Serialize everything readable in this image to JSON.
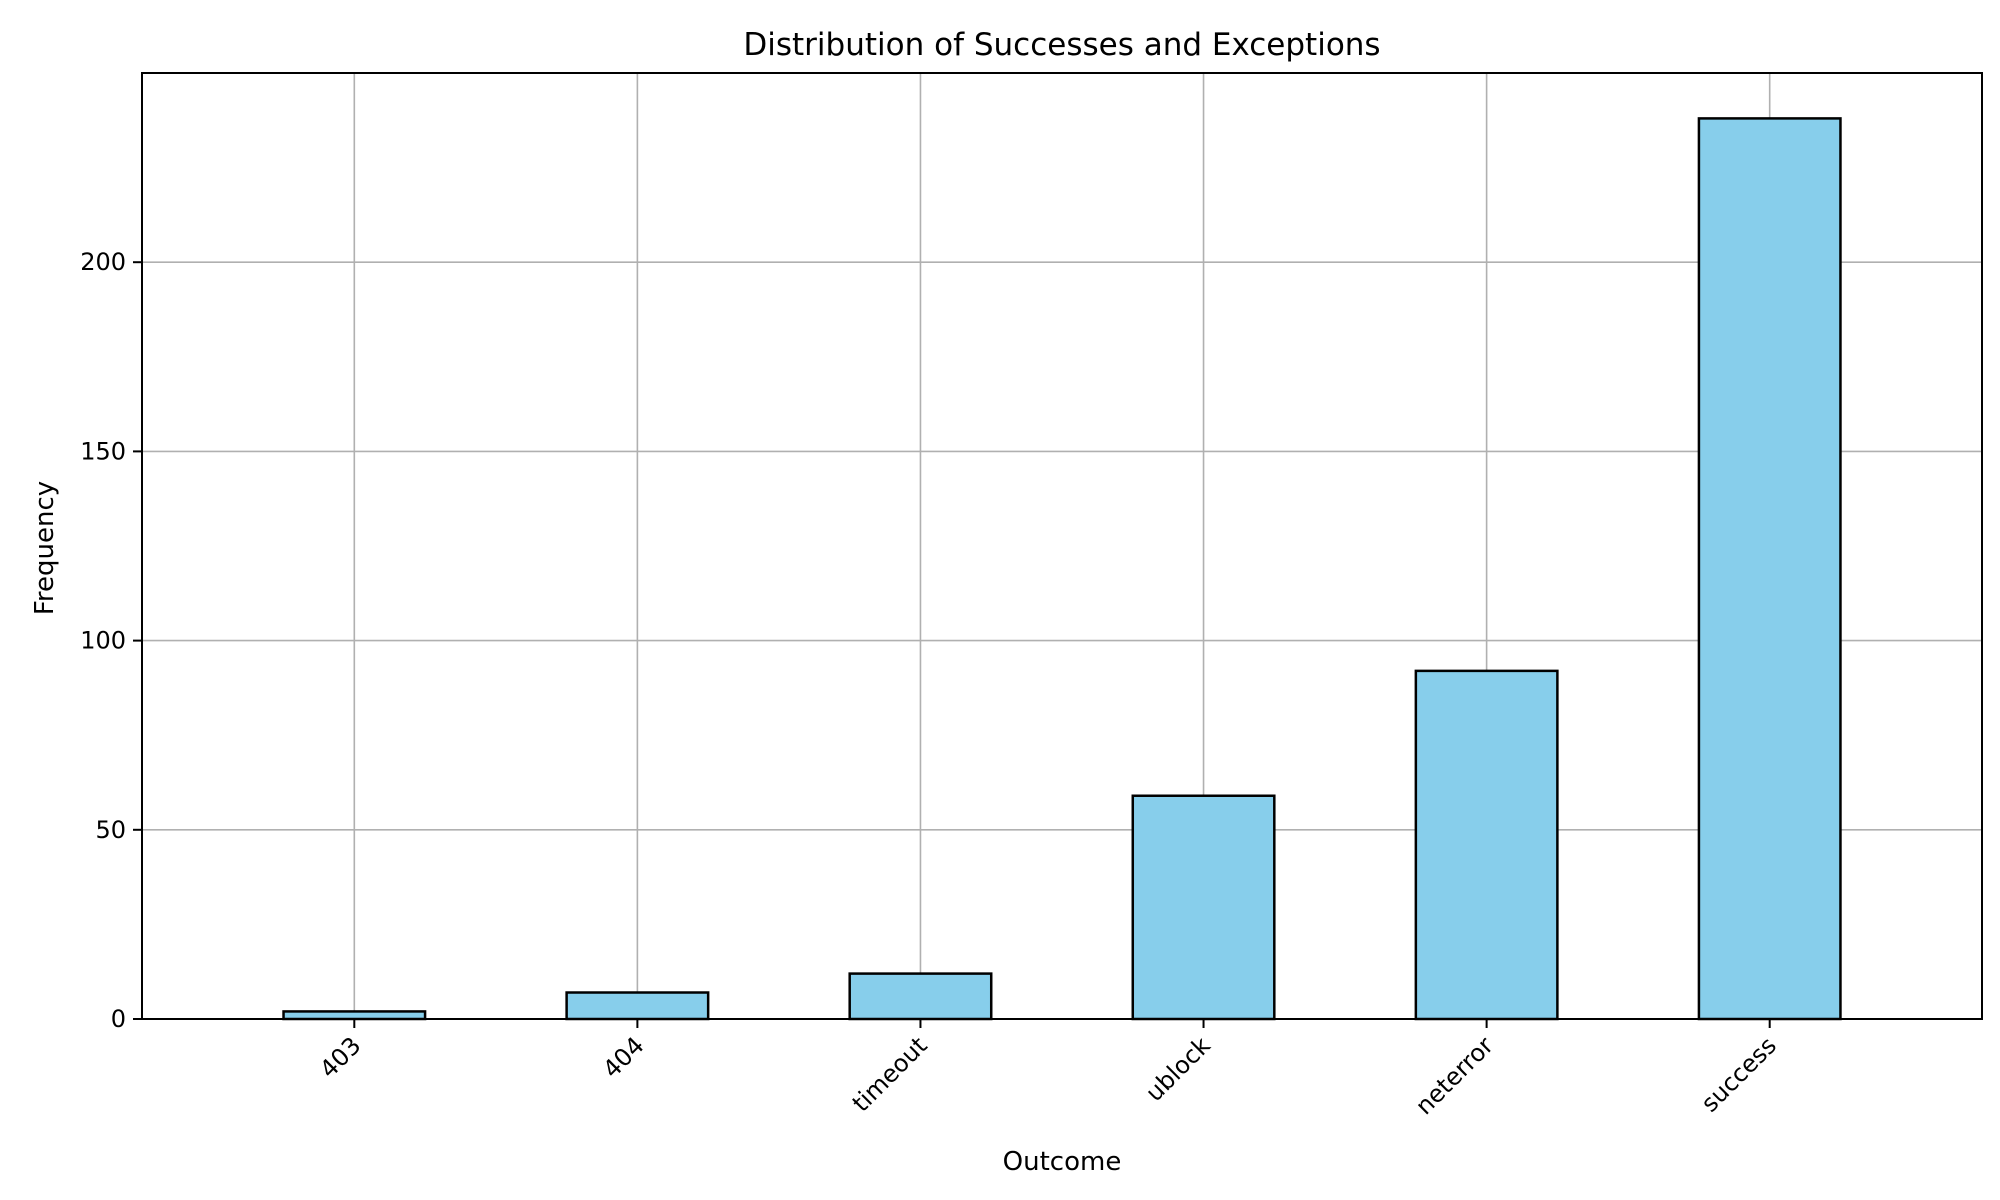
{
  "chart_data": {
    "type": "bar",
    "title": "Distribution of Successes and Exceptions",
    "xlabel": "Outcome",
    "ylabel": "Frequency",
    "categories": [
      "403",
      "404",
      "timeout",
      "ublock",
      "neterror",
      "success"
    ],
    "values": [
      2,
      7,
      12,
      59,
      92,
      238
    ],
    "ylim": [
      0,
      250
    ],
    "yticks": [
      0,
      50,
      100,
      150,
      200
    ],
    "grid": true,
    "bar_color": "#87ceeb",
    "bar_edge_color": "#000000",
    "grid_color": "#b0b0b0",
    "x_tick_rotation_deg": 45
  }
}
